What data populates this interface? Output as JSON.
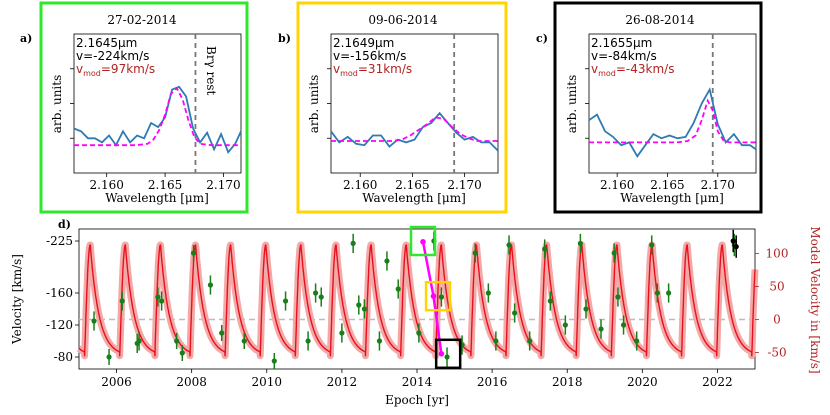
{
  "chart_data": [
    {
      "type": "line",
      "panel_label": "a)",
      "title": "27-02-2014",
      "frame_color": "#2ee82e",
      "xlabel": "Wavelength [μm]",
      "ylabel": "arb. units",
      "xlim": [
        2.1572,
        2.1715
      ],
      "ylim": [
        0,
        1
      ],
      "xticks": [
        "2.160",
        "2.165",
        "2.170"
      ],
      "xtick_values": [
        2.16,
        2.165,
        2.17
      ],
      "annotations": {
        "wavelength": "2.1645μm",
        "velocity": "v=-224km/s",
        "model_velocity": "v_mod=97km/s",
        "model_velocity_prefix": "v",
        "model_velocity_sub": "mod",
        "model_velocity_value": "=97km/s",
        "rest_label": "Brγ rest"
      },
      "rest_line": 2.1676,
      "series": [
        {
          "name": "observed",
          "color": "#2e7bb4",
          "x": [
            2.1572,
            2.1578,
            2.1584,
            2.159,
            2.1596,
            2.1602,
            2.1608,
            2.1614,
            2.162,
            2.1626,
            2.1632,
            2.1638,
            2.1644,
            2.165,
            2.1656,
            2.1662,
            2.1668,
            2.1674,
            2.168,
            2.1686,
            2.1692,
            2.1698,
            2.1704,
            2.171,
            2.1715
          ],
          "y": [
            0.32,
            0.3,
            0.25,
            0.25,
            0.22,
            0.27,
            0.2,
            0.3,
            0.22,
            0.27,
            0.25,
            0.36,
            0.33,
            0.4,
            0.6,
            0.62,
            0.55,
            0.32,
            0.22,
            0.29,
            0.17,
            0.28,
            0.15,
            0.21,
            0.3
          ]
        },
        {
          "name": "model",
          "color": "#ff00ff",
          "x": [
            2.1572,
            2.159,
            2.161,
            2.1625,
            2.1635,
            2.164,
            2.1645,
            2.165,
            2.1655,
            2.166,
            2.1665,
            2.167,
            2.1675,
            2.168,
            2.169,
            2.17,
            2.1715
          ],
          "y": [
            0.2,
            0.2,
            0.2,
            0.2,
            0.21,
            0.24,
            0.31,
            0.42,
            0.57,
            0.61,
            0.53,
            0.38,
            0.26,
            0.21,
            0.2,
            0.2,
            0.2
          ]
        }
      ]
    },
    {
      "type": "line",
      "panel_label": "b)",
      "title": "09-06-2014",
      "frame_color": "#ffd400",
      "xlabel": "Wavelength [μm]",
      "ylabel": "arb. units",
      "xlim": [
        2.1572,
        2.1732
      ],
      "ylim": [
        0,
        1
      ],
      "xticks": [
        "2.160",
        "2.165",
        "2.170"
      ],
      "xtick_values": [
        2.16,
        2.165,
        2.17
      ],
      "annotations": {
        "wavelength": "2.1649μm",
        "velocity": "v=-156km/s",
        "model_velocity": "v_mod=31km/s",
        "model_velocity_prefix": "v",
        "model_velocity_sub": "mod",
        "model_velocity_value": "=31km/s",
        "rest_label": ""
      },
      "rest_line": 2.169,
      "series": [
        {
          "name": "observed",
          "color": "#2e7bb4",
          "x": [
            2.1572,
            2.158,
            2.1588,
            2.1596,
            2.1604,
            2.1612,
            2.162,
            2.1628,
            2.1636,
            2.1644,
            2.1652,
            2.166,
            2.1668,
            2.1676,
            2.1684,
            2.1692,
            2.17,
            2.1708,
            2.1716,
            2.1724,
            2.1732
          ],
          "y": [
            0.3,
            0.22,
            0.26,
            0.21,
            0.2,
            0.27,
            0.27,
            0.19,
            0.24,
            0.22,
            0.24,
            0.33,
            0.36,
            0.43,
            0.36,
            0.29,
            0.24,
            0.26,
            0.22,
            0.22,
            0.16
          ]
        },
        {
          "name": "model",
          "color": "#ff00ff",
          "x": [
            2.1572,
            2.16,
            2.162,
            2.163,
            2.164,
            2.1648,
            2.1656,
            2.1664,
            2.1672,
            2.168,
            2.1688,
            2.1696,
            2.1704,
            2.1712,
            2.172,
            2.1732
          ],
          "y": [
            0.23,
            0.23,
            0.23,
            0.23,
            0.24,
            0.27,
            0.31,
            0.35,
            0.4,
            0.39,
            0.33,
            0.28,
            0.25,
            0.23,
            0.23,
            0.23
          ]
        }
      ]
    },
    {
      "type": "line",
      "panel_label": "c)",
      "title": "26-08-2014",
      "frame_color": "#000000",
      "xlabel": "Wavelength [μm]",
      "ylabel": "arb. units",
      "xlim": [
        2.1572,
        2.1738
      ],
      "ylim": [
        0,
        1
      ],
      "xticks": [
        "2.160",
        "2.165",
        "2.170"
      ],
      "xtick_values": [
        2.16,
        2.165,
        2.17
      ],
      "annotations": {
        "wavelength": "2.1655μm",
        "velocity": "v=-84km/s",
        "model_velocity": "v_mod=-43km/s",
        "model_velocity_prefix": "v",
        "model_velocity_sub": "mod",
        "model_velocity_value": "=-43km/s",
        "rest_label": ""
      },
      "rest_line": 2.1695,
      "series": [
        {
          "name": "observed",
          "color": "#2e7bb4",
          "x": [
            2.1572,
            2.158,
            2.1588,
            2.1596,
            2.1604,
            2.1612,
            2.162,
            2.1628,
            2.1636,
            2.1644,
            2.1652,
            2.166,
            2.1668,
            2.1676,
            2.1684,
            2.1692,
            2.17,
            2.1708,
            2.1716,
            2.1724,
            2.1732,
            2.1738
          ],
          "y": [
            0.38,
            0.42,
            0.3,
            0.26,
            0.2,
            0.22,
            0.12,
            0.2,
            0.28,
            0.25,
            0.27,
            0.25,
            0.26,
            0.36,
            0.5,
            0.6,
            0.35,
            0.22,
            0.28,
            0.2,
            0.2,
            0.17
          ]
        },
        {
          "name": "model",
          "color": "#ff00ff",
          "x": [
            2.1572,
            2.16,
            2.164,
            2.166,
            2.167,
            2.1678,
            2.1684,
            2.169,
            2.1695,
            2.17,
            2.1706,
            2.1712,
            2.172,
            2.1738
          ],
          "y": [
            0.22,
            0.22,
            0.22,
            0.22,
            0.23,
            0.27,
            0.38,
            0.52,
            0.45,
            0.3,
            0.23,
            0.22,
            0.22,
            0.22
          ]
        }
      ]
    },
    {
      "type": "line",
      "panel_label": "d)",
      "title": "",
      "xlabel": "Epoch [yr]",
      "ylabel": "Velocity [km/s]",
      "ylabel_right": "Model Velocity in [km/s]",
      "xlim": [
        2005.0,
        2023.0
      ],
      "ylim_left": [
        -65,
        -240
      ],
      "ylim_right": [
        -75,
        137
      ],
      "xticks": [
        "2006",
        "2008",
        "2010",
        "2012",
        "2014",
        "2016",
        "2018",
        "2020",
        "2022"
      ],
      "xtick_values": [
        2006,
        2008,
        2010,
        2012,
        2014,
        2016,
        2018,
        2020,
        2022
      ],
      "yticks_left": [
        "-225",
        "-160",
        "-120",
        "-80"
      ],
      "yticks_left_values": [
        -225,
        -160,
        -120,
        -80
      ],
      "yticks_right": [
        "100",
        "50",
        "0",
        "-50"
      ],
      "yticks_right_values": [
        100,
        50,
        0,
        -50
      ],
      "model": {
        "name": "model velocity",
        "color": "#e8101c",
        "band_color": "#f4a9a9",
        "period_yr": 0.935,
        "phase_epoch": 2005.15,
        "max": 113,
        "min": -55
      },
      "zero_line": 0,
      "data_points": {
        "name": "observed",
        "color": "#1a7f1a",
        "x": [
          2005.4,
          2005.8,
          2006.15,
          2006.55,
          2006.6,
          2007.1,
          2007.2,
          2007.6,
          2007.75,
          2008.05,
          2008.5,
          2008.8,
          2009.4,
          2010.2,
          2010.5,
          2011.1,
          2011.3,
          2011.45,
          2012.0,
          2012.3,
          2012.45,
          2012.6,
          2013.0,
          2013.2,
          2013.5,
          2014.05,
          2014.45,
          2014.65,
          2014.8,
          2015.2,
          2015.55,
          2015.9,
          2016.1,
          2016.45,
          2016.6,
          2017.0,
          2017.4,
          2017.55,
          2017.95,
          2018.35,
          2018.5,
          2018.9,
          2019.25,
          2019.35,
          2019.5,
          2019.85,
          2020.25,
          2020.4,
          2020.7,
          2022.45
        ],
        "y": [
          -125,
          -80,
          -150,
          -97,
          -100,
          -155,
          -150,
          -100,
          -85,
          -210,
          -170,
          -110,
          -100,
          -75,
          -150,
          -100,
          -160,
          -155,
          -110,
          -222,
          -145,
          -140,
          -100,
          -200,
          -165,
          -110,
          -225,
          -155,
          -80,
          -95,
          -210,
          -160,
          -100,
          -220,
          -135,
          -100,
          -215,
          -150,
          -120,
          -222,
          -140,
          -115,
          -210,
          -155,
          -120,
          -100,
          -220,
          -160,
          -160,
          -220
        ],
        "err": [
          12,
          10,
          12,
          12,
          12,
          12,
          12,
          10,
          10,
          10,
          12,
          10,
          10,
          10,
          12,
          12,
          12,
          12,
          12,
          12,
          12,
          12,
          12,
          12,
          12,
          12,
          12,
          12,
          12,
          12,
          12,
          12,
          12,
          12,
          12,
          12,
          12,
          12,
          12,
          12,
          12,
          12,
          12,
          12,
          12,
          12,
          12,
          12,
          12,
          14
        ]
      },
      "extra_points": {
        "name": "latest",
        "color": "#000000",
        "x": [
          2022.42,
          2022.5
        ],
        "y": [
          -225,
          -218
        ],
        "err": [
          14,
          14
        ]
      },
      "highlight_points": {
        "color": "#ff00ff",
        "x": [
          2014.16,
          2014.44,
          2014.65
        ],
        "y": [
          -224,
          -156,
          -84
        ]
      },
      "highlight_boxes": [
        {
          "color": "#2ee82e",
          "x": 2014.16,
          "y": -225
        },
        {
          "color": "#ffd400",
          "x": 2014.56,
          "y": -156
        },
        {
          "color": "#000000",
          "x": 2014.83,
          "y": -84
        }
      ]
    }
  ]
}
